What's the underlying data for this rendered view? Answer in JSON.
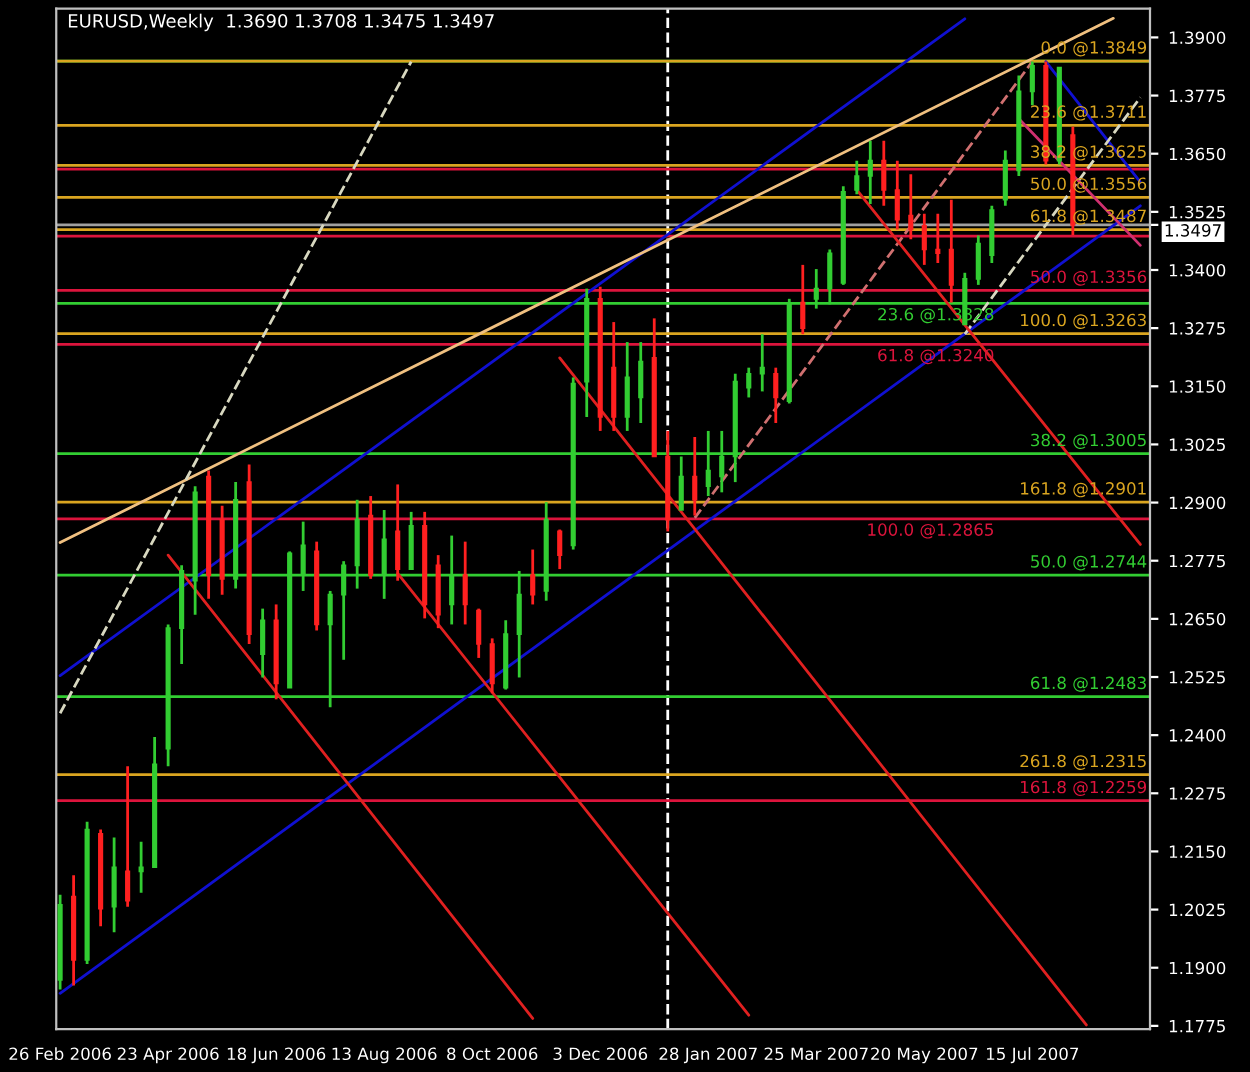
{
  "chart_data": {
    "type": "candlestick",
    "title": "EURUSD,Weekly  1.3690 1.3708 1.3475 1.3497",
    "x": [
      "2006-02-26",
      "2006-03-05",
      "2006-03-12",
      "2006-03-19",
      "2006-03-26",
      "2006-04-02",
      "2006-04-09",
      "2006-04-16",
      "2006-04-23",
      "2006-04-30",
      "2006-05-07",
      "2006-05-14",
      "2006-05-21",
      "2006-05-28",
      "2006-06-04",
      "2006-06-11",
      "2006-06-18",
      "2006-06-25",
      "2006-07-02",
      "2006-07-09",
      "2006-07-16",
      "2006-07-23",
      "2006-07-30",
      "2006-08-06",
      "2006-08-13",
      "2006-08-20",
      "2006-08-27",
      "2006-09-03",
      "2006-09-10",
      "2006-09-17",
      "2006-09-24",
      "2006-10-01",
      "2006-10-08",
      "2006-10-15",
      "2006-10-22",
      "2006-10-29",
      "2006-11-05",
      "2006-11-12",
      "2006-11-19",
      "2006-11-26",
      "2006-12-03",
      "2006-12-10",
      "2006-12-17",
      "2006-12-24",
      "2006-12-31",
      "2007-01-07",
      "2007-01-14",
      "2007-01-21",
      "2007-01-28",
      "2007-02-04",
      "2007-02-11",
      "2007-02-18",
      "2007-02-25",
      "2007-03-04",
      "2007-03-11",
      "2007-03-18",
      "2007-03-25",
      "2007-04-01",
      "2007-04-08",
      "2007-04-15",
      "2007-04-22",
      "2007-04-29",
      "2007-05-06",
      "2007-05-13",
      "2007-05-20",
      "2007-05-27",
      "2007-06-03",
      "2007-06-10",
      "2007-06-17",
      "2007-06-24",
      "2007-07-01",
      "2007-07-08",
      "2007-07-15",
      "2007-07-22",
      "2007-07-29",
      "2007-08-05"
    ],
    "ohlc": [
      [
        1.1874,
        1.2057,
        1.1853,
        1.2035
      ],
      [
        1.2053,
        1.2099,
        1.1862,
        1.1917
      ],
      [
        1.1917,
        1.2214,
        1.1908,
        1.2197
      ],
      [
        1.2188,
        1.2197,
        1.1989,
        1.2027
      ],
      [
        1.2031,
        1.218,
        1.1976,
        1.2116
      ],
      [
        1.2107,
        1.2333,
        1.2031,
        1.2044
      ],
      [
        1.2107,
        1.2171,
        1.2061,
        1.2116
      ],
      [
        1.2116,
        1.2396,
        1.2116,
        1.2337
      ],
      [
        1.2371,
        1.2638,
        1.2333,
        1.263
      ],
      [
        1.263,
        1.2765,
        1.2553,
        1.2753
      ],
      [
        1.2732,
        1.2935,
        1.2659,
        1.2922
      ],
      [
        1.2956,
        1.2969,
        1.2693,
        1.2744
      ],
      [
        1.2863,
        1.2893,
        1.2702,
        1.2736
      ],
      [
        1.2736,
        1.2944,
        1.2715,
        1.2906
      ],
      [
        1.2944,
        1.2982,
        1.2596,
        1.2617
      ],
      [
        1.2574,
        1.2672,
        1.2524,
        1.2647
      ],
      [
        1.2647,
        1.2681,
        1.2477,
        1.2511
      ],
      [
        1.2502,
        1.2795,
        1.2502,
        1.2791
      ],
      [
        1.2744,
        1.2859,
        1.271,
        1.2808
      ],
      [
        1.2795,
        1.2816,
        1.2625,
        1.2638
      ],
      [
        1.2638,
        1.271,
        1.246,
        1.2702
      ],
      [
        1.2702,
        1.2774,
        1.2562,
        1.2765
      ],
      [
        1.2765,
        1.2906,
        1.2715,
        1.2863
      ],
      [
        1.2872,
        1.2914,
        1.2736,
        1.2744
      ],
      [
        1.2744,
        1.2884,
        1.2693,
        1.2821
      ],
      [
        1.2838,
        1.2939,
        1.2732,
        1.2757
      ],
      [
        1.2757,
        1.288,
        1.2757,
        1.285
      ],
      [
        1.285,
        1.288,
        1.2651,
        1.2681
      ],
      [
        1.2765,
        1.2787,
        1.263,
        1.2659
      ],
      [
        1.2681,
        1.2829,
        1.2638,
        1.2744
      ],
      [
        1.2744,
        1.2816,
        1.2638,
        1.2681
      ],
      [
        1.2668,
        1.2672,
        1.2566,
        1.2596
      ],
      [
        1.2596,
        1.2608,
        1.249,
        1.2511
      ],
      [
        1.2502,
        1.2647,
        1.2498,
        1.2617
      ],
      [
        1.2617,
        1.2753,
        1.2524,
        1.2702
      ],
      [
        1.2744,
        1.2799,
        1.2681,
        1.2702
      ],
      [
        1.271,
        1.2901,
        1.2689,
        1.2863
      ],
      [
        1.2838,
        1.2842,
        1.2757,
        1.2787
      ],
      [
        1.2808,
        1.3169,
        1.2799,
        1.3156
      ],
      [
        1.316,
        1.336,
        1.3084,
        1.3338
      ],
      [
        1.3338,
        1.3364,
        1.3054,
        1.3084
      ],
      [
        1.319,
        1.3288,
        1.3054,
        1.3084
      ],
      [
        1.3084,
        1.3245,
        1.3054,
        1.3169
      ],
      [
        1.3126,
        1.3245,
        1.3071,
        1.3203
      ],
      [
        1.3211,
        1.3296,
        1.2999,
        1.2999
      ],
      [
        1.2999,
        1.3054,
        1.2838,
        1.2863
      ],
      [
        1.2884,
        1.2999,
        1.2884,
        1.2956
      ],
      [
        1.2956,
        1.3041,
        1.2872,
        1.2906
      ],
      [
        1.2935,
        1.3054,
        1.2914,
        1.2969
      ],
      [
        1.2956,
        1.3054,
        1.2922,
        1.2999
      ],
      [
        1.2999,
        1.3177,
        1.2944,
        1.316
      ],
      [
        1.3147,
        1.319,
        1.3126,
        1.3177
      ],
      [
        1.3177,
        1.3262,
        1.3139,
        1.319
      ],
      [
        1.3177,
        1.319,
        1.3071,
        1.3126
      ],
      [
        1.3118,
        1.3338,
        1.3113,
        1.3326
      ],
      [
        1.333,
        1.3411,
        1.3262,
        1.3275
      ],
      [
        1.3338,
        1.3402,
        1.3317,
        1.336
      ],
      [
        1.336,
        1.3444,
        1.3326,
        1.3436
      ],
      [
        1.3372,
        1.358,
        1.3368,
        1.3568
      ],
      [
        1.3572,
        1.3635,
        1.3563,
        1.3602
      ],
      [
        1.3602,
        1.3678,
        1.3542,
        1.3635
      ],
      [
        1.3635,
        1.3678,
        1.3538,
        1.3572
      ],
      [
        1.3572,
        1.3635,
        1.3487,
        1.3508
      ],
      [
        1.3517,
        1.3606,
        1.3466,
        1.3487
      ],
      [
        1.3495,
        1.3521,
        1.3411,
        1.3444
      ],
      [
        1.3444,
        1.3521,
        1.3415,
        1.3436
      ],
      [
        1.3444,
        1.3551,
        1.333,
        1.3368
      ],
      [
        1.3283,
        1.3394,
        1.3283,
        1.3381
      ],
      [
        1.3381,
        1.3474,
        1.3368,
        1.3457
      ],
      [
        1.3432,
        1.3538,
        1.3415,
        1.3529
      ],
      [
        1.3551,
        1.3657,
        1.3538,
        1.3635
      ],
      [
        1.3614,
        1.3818,
        1.3602,
        1.3784
      ],
      [
        1.3784,
        1.3848,
        1.3754,
        1.3839
      ],
      [
        1.3839,
        1.3848,
        1.3627,
        1.3635
      ],
      [
        1.3635,
        1.3835,
        1.3627,
        1.3835
      ],
      [
        1.369,
        1.3708,
        1.3475,
        1.3497
      ]
    ],
    "colors": [
      "#32cd32",
      "#ff2020",
      "#32cd32",
      "#ff2020",
      "#32cd32",
      "#ff2020",
      "#32cd32",
      "#32cd32",
      "#32cd32",
      "#32cd32",
      "#32cd32",
      "#ff2020",
      "#ff2020",
      "#32cd32",
      "#ff2020",
      "#32cd32",
      "#ff2020",
      "#32cd32",
      "#32cd32",
      "#ff2020",
      "#32cd32",
      "#32cd32",
      "#32cd32",
      "#ff2020",
      "#32cd32",
      "#ff2020",
      "#32cd32",
      "#ff2020",
      "#ff2020",
      "#32cd32",
      "#ff2020",
      "#ff2020",
      "#ff2020",
      "#32cd32",
      "#32cd32",
      "#ff2020",
      "#32cd32",
      "#ff2020",
      "#32cd32",
      "#32cd32",
      "#ff2020",
      "#ff2020",
      "#32cd32",
      "#32cd32",
      "#ff2020",
      "#ff2020",
      "#32cd32",
      "#ff2020",
      "#32cd32",
      "#32cd32",
      "#32cd32",
      "#32cd32",
      "#32cd32",
      "#ff2020",
      "#32cd32",
      "#ff2020",
      "#32cd32",
      "#32cd32",
      "#32cd32",
      "#32cd32",
      "#32cd32",
      "#ff2020",
      "#ff2020",
      "#ff2020",
      "#ff2020",
      "#ff2020",
      "#ff2020",
      "#32cd32",
      "#32cd32",
      "#32cd32",
      "#32cd32",
      "#32cd32",
      "#32cd32",
      "#ff2020",
      "#32cd32",
      "#ff2020"
    ],
    "series": [
      {
        "type": "line",
        "color": "#1010d0",
        "line_style": "solid",
        "x": [
          "2006-02-26",
          "2007-06-10"
        ],
        "values": [
          1.2528,
          1.394
        ]
      },
      {
        "type": "line",
        "color": "#1010d0",
        "line_style": "solid",
        "x": [
          "2006-02-26",
          "2007-09-09"
        ],
        "values": [
          1.1845,
          1.3538
        ]
      },
      {
        "type": "line",
        "color": "#1010d0",
        "line_style": "solid",
        "x": [
          "2007-07-22",
          "2007-09-09"
        ],
        "values": [
          1.3848,
          1.3589
        ]
      },
      {
        "type": "line",
        "color": "#f0c080",
        "line_style": "solid",
        "x": [
          "2006-02-26",
          "2007-08-26"
        ],
        "values": [
          1.2814,
          1.3941
        ]
      },
      {
        "type": "line",
        "color": "#d8d8c0",
        "line_style": "dashed",
        "x": [
          "2006-02-26",
          "2006-08-27"
        ],
        "values": [
          1.2447,
          1.3848
        ]
      },
      {
        "type": "line",
        "color": "#d8d8c0",
        "line_style": "dashed",
        "x": [
          "2007-06-10",
          "2007-09-09"
        ],
        "values": [
          1.3262,
          1.3771
        ]
      },
      {
        "type": "line",
        "color": "#d07070",
        "line_style": "dashed",
        "x": [
          "2007-01-21",
          "2007-07-15"
        ],
        "values": [
          1.2867,
          1.3848
        ]
      },
      {
        "type": "line",
        "color": "#e02020",
        "line_style": "solid",
        "x": [
          "2006-04-23",
          "2006-10-29"
        ],
        "values": [
          1.2787,
          1.1791
        ]
      },
      {
        "type": "line",
        "color": "#e02020",
        "line_style": "solid",
        "x": [
          "2006-08-20",
          "2007-02-18"
        ],
        "values": [
          1.2748,
          1.1798
        ]
      },
      {
        "type": "line",
        "color": "#e02020",
        "line_style": "solid",
        "x": [
          "2006-11-12",
          "2007-08-12"
        ],
        "values": [
          1.3211,
          1.1777
        ]
      },
      {
        "type": "line",
        "color": "#e02020",
        "line_style": "solid",
        "x": [
          "2007-04-15",
          "2007-09-09"
        ],
        "values": [
          1.3572,
          1.281
        ]
      },
      {
        "type": "line",
        "color": "#d03070",
        "line_style": "solid",
        "x": [
          "2007-07-08",
          "2007-09-09"
        ],
        "values": [
          1.3725,
          1.3453
        ]
      }
    ],
    "ref_lines": [
      {
        "axis": "x",
        "value": "2007-01-07",
        "color": "#ffffff",
        "line_style": "dashed"
      },
      {
        "axis": "y",
        "value": 1.3849,
        "color": "#32cd32",
        "line_style": "solid"
      },
      {
        "axis": "y",
        "value": 1.3328,
        "label": "23.6 @1.3328",
        "color": "#32cd32",
        "line_style": "solid"
      },
      {
        "axis": "y",
        "value": 1.3005,
        "label": "38.2 @1.3005",
        "color": "#32cd32",
        "line_style": "solid"
      },
      {
        "axis": "y",
        "value": 1.2744,
        "label": "50.0 @1.2744",
        "color": "#32cd32",
        "line_style": "solid"
      },
      {
        "axis": "y",
        "value": 1.2483,
        "label": "61.8 @1.2483",
        "color": "#32cd32",
        "line_style": "solid"
      },
      {
        "axis": "y",
        "value": 1.3849,
        "label": "0.0 @1.3849",
        "color": "#daa520",
        "line_style": "solid"
      },
      {
        "axis": "y",
        "value": 1.3711,
        "label": "23.6 @1.3711",
        "color": "#daa520",
        "line_style": "solid"
      },
      {
        "axis": "y",
        "value": 1.3625,
        "label": "38.2 @1.3625",
        "color": "#daa520",
        "line_style": "solid"
      },
      {
        "axis": "y",
        "value": 1.3556,
        "label": "50.0 @1.3556",
        "color": "#daa520",
        "line_style": "solid"
      },
      {
        "axis": "y",
        "value": 1.3487,
        "label": "61.8 @1.3487",
        "color": "#daa520",
        "line_style": "solid"
      },
      {
        "axis": "y",
        "value": 1.3263,
        "label": "100.0 @1.3263",
        "color": "#daa520",
        "line_style": "solid"
      },
      {
        "axis": "y",
        "value": 1.2901,
        "label": "161.8 @1.2901",
        "color": "#daa520",
        "line_style": "solid"
      },
      {
        "axis": "y",
        "value": 1.2315,
        "label": "261.8 @1.2315",
        "color": "#daa520",
        "line_style": "solid"
      },
      {
        "axis": "y",
        "value": 1.3617,
        "color": "#dc143c",
        "line_style": "solid"
      },
      {
        "axis": "y",
        "value": 1.3473,
        "color": "#dc143c",
        "line_style": "solid"
      },
      {
        "axis": "y",
        "value": 1.3356,
        "label": "50.0 @1.3356",
        "color": "#dc143c",
        "line_style": "solid"
      },
      {
        "axis": "y",
        "value": 1.324,
        "label": "61.8 @1.3240",
        "color": "#dc143c",
        "line_style": "solid"
      },
      {
        "axis": "y",
        "value": 1.2865,
        "label": "100.0 @1.2865",
        "color": "#dc143c",
        "line_style": "solid"
      },
      {
        "axis": "y",
        "value": 1.2259,
        "label": "161.8 @1.2259",
        "color": "#dc143c",
        "line_style": "solid"
      },
      {
        "axis": "y",
        "value": 1.3497,
        "color": "#a0a0a0",
        "line_style": "solid"
      }
    ],
    "xlim": [
      "2006-02-24",
      "2007-09-14"
    ],
    "xticks": [
      {
        "value": "2006-02-26",
        "label": "26 Feb 2006"
      },
      {
        "value": "2006-04-23",
        "label": "23 Apr 2006"
      },
      {
        "value": "2006-06-18",
        "label": "18 Jun 2006"
      },
      {
        "value": "2006-08-13",
        "label": "13 Aug 2006"
      },
      {
        "value": "2006-10-08",
        "label": "8 Oct 2006"
      },
      {
        "value": "2006-12-03",
        "label": "3 Dec 2006"
      },
      {
        "value": "2007-01-28",
        "label": "28 Jan 2007"
      },
      {
        "value": "2007-03-25",
        "label": "25 Mar 2007"
      },
      {
        "value": "2007-05-20",
        "label": "20 May 2007"
      },
      {
        "value": "2007-07-15",
        "label": "15 Jul 2007"
      }
    ],
    "ylim": [
      1.1768,
      1.3962
    ],
    "yticks": [
      {
        "value": 1.1775,
        "label": "1.1775"
      },
      {
        "value": 1.19,
        "label": "1.1900"
      },
      {
        "value": 1.2025,
        "label": "1.2025"
      },
      {
        "value": 1.215,
        "label": "1.2150"
      },
      {
        "value": 1.2275,
        "label": "1.2275"
      },
      {
        "value": 1.24,
        "label": "1.2400"
      },
      {
        "value": 1.2525,
        "label": "1.2525"
      },
      {
        "value": 1.265,
        "label": "1.2650"
      },
      {
        "value": 1.2775,
        "label": "1.2775"
      },
      {
        "value": 1.29,
        "label": "1.2900"
      },
      {
        "value": 1.3025,
        "label": "1.3025"
      },
      {
        "value": 1.315,
        "label": "1.3150"
      },
      {
        "value": 1.3275,
        "label": "1.3275"
      },
      {
        "value": 1.34,
        "label": "1.3400"
      },
      {
        "value": 1.3497,
        "label": "1.3497"
      },
      {
        "value": 1.3525,
        "label": "1.3525"
      },
      {
        "value": 1.365,
        "label": "1.3650"
      },
      {
        "value": 1.3775,
        "label": "1.3775"
      },
      {
        "value": 1.39,
        "label": "1.3900"
      }
    ]
  }
}
